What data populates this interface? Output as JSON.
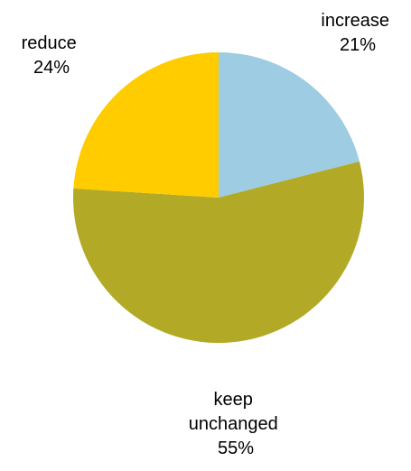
{
  "chart_data": {
    "type": "pie",
    "title": "",
    "start_angle_deg": 0,
    "direction": "clockwise",
    "slices": [
      {
        "label_lines": [
          "increase"
        ],
        "value": 21,
        "value_label": "21%",
        "color": "#9DCCE3"
      },
      {
        "label_lines": [
          "keep",
          "unchanged"
        ],
        "value": 55,
        "value_label": "55%",
        "color": "#B2AA26"
      },
      {
        "label_lines": [
          "reduce"
        ],
        "value": 24,
        "value_label": "24%",
        "color": "#FFCC00"
      }
    ],
    "legend": "none",
    "labels": "outside"
  }
}
